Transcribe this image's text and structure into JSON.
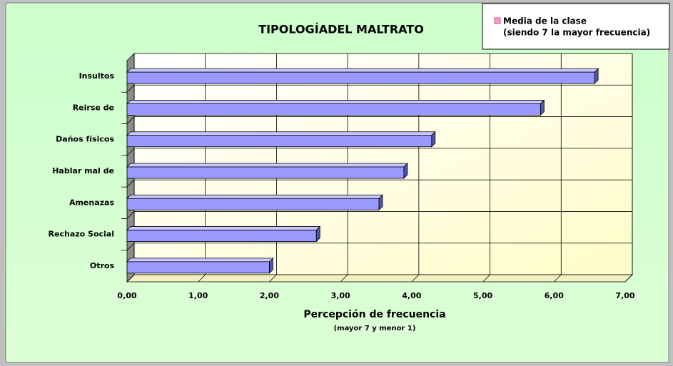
{
  "chart_data": {
    "type": "bar",
    "orientation": "horizontal",
    "title": "TIPOLOGÍADEL MALTRATO",
    "x_label": "Percepción de frecuencia",
    "x_sublabel": "(mayor 7 y menor 1)",
    "categories": [
      "Insultos",
      "Reirse de",
      "Daños físicos",
      "Hablar mal de",
      "Amenazas",
      "Rechazo Social",
      "Otros"
    ],
    "series": [
      {
        "name": "Media de la clase",
        "color": "#9999ff",
        "values": [
          6.57,
          5.81,
          4.28,
          3.89,
          3.54,
          2.66,
          2.0
        ]
      }
    ],
    "legend_note": "(siendo 7 la mayor frecuencia)",
    "legend": "top-right",
    "xlim": [
      0,
      7
    ],
    "xticks": [
      {
        "value": 0,
        "label": "0,00"
      },
      {
        "value": 1,
        "label": "1,00"
      },
      {
        "value": 2,
        "label": "2,00"
      },
      {
        "value": 3,
        "label": "3,00"
      },
      {
        "value": 4,
        "label": "4,00"
      },
      {
        "value": 5,
        "label": "5,00"
      },
      {
        "value": 6,
        "label": "6,00"
      },
      {
        "value": 7,
        "label": "7,00"
      }
    ],
    "grid": true
  }
}
